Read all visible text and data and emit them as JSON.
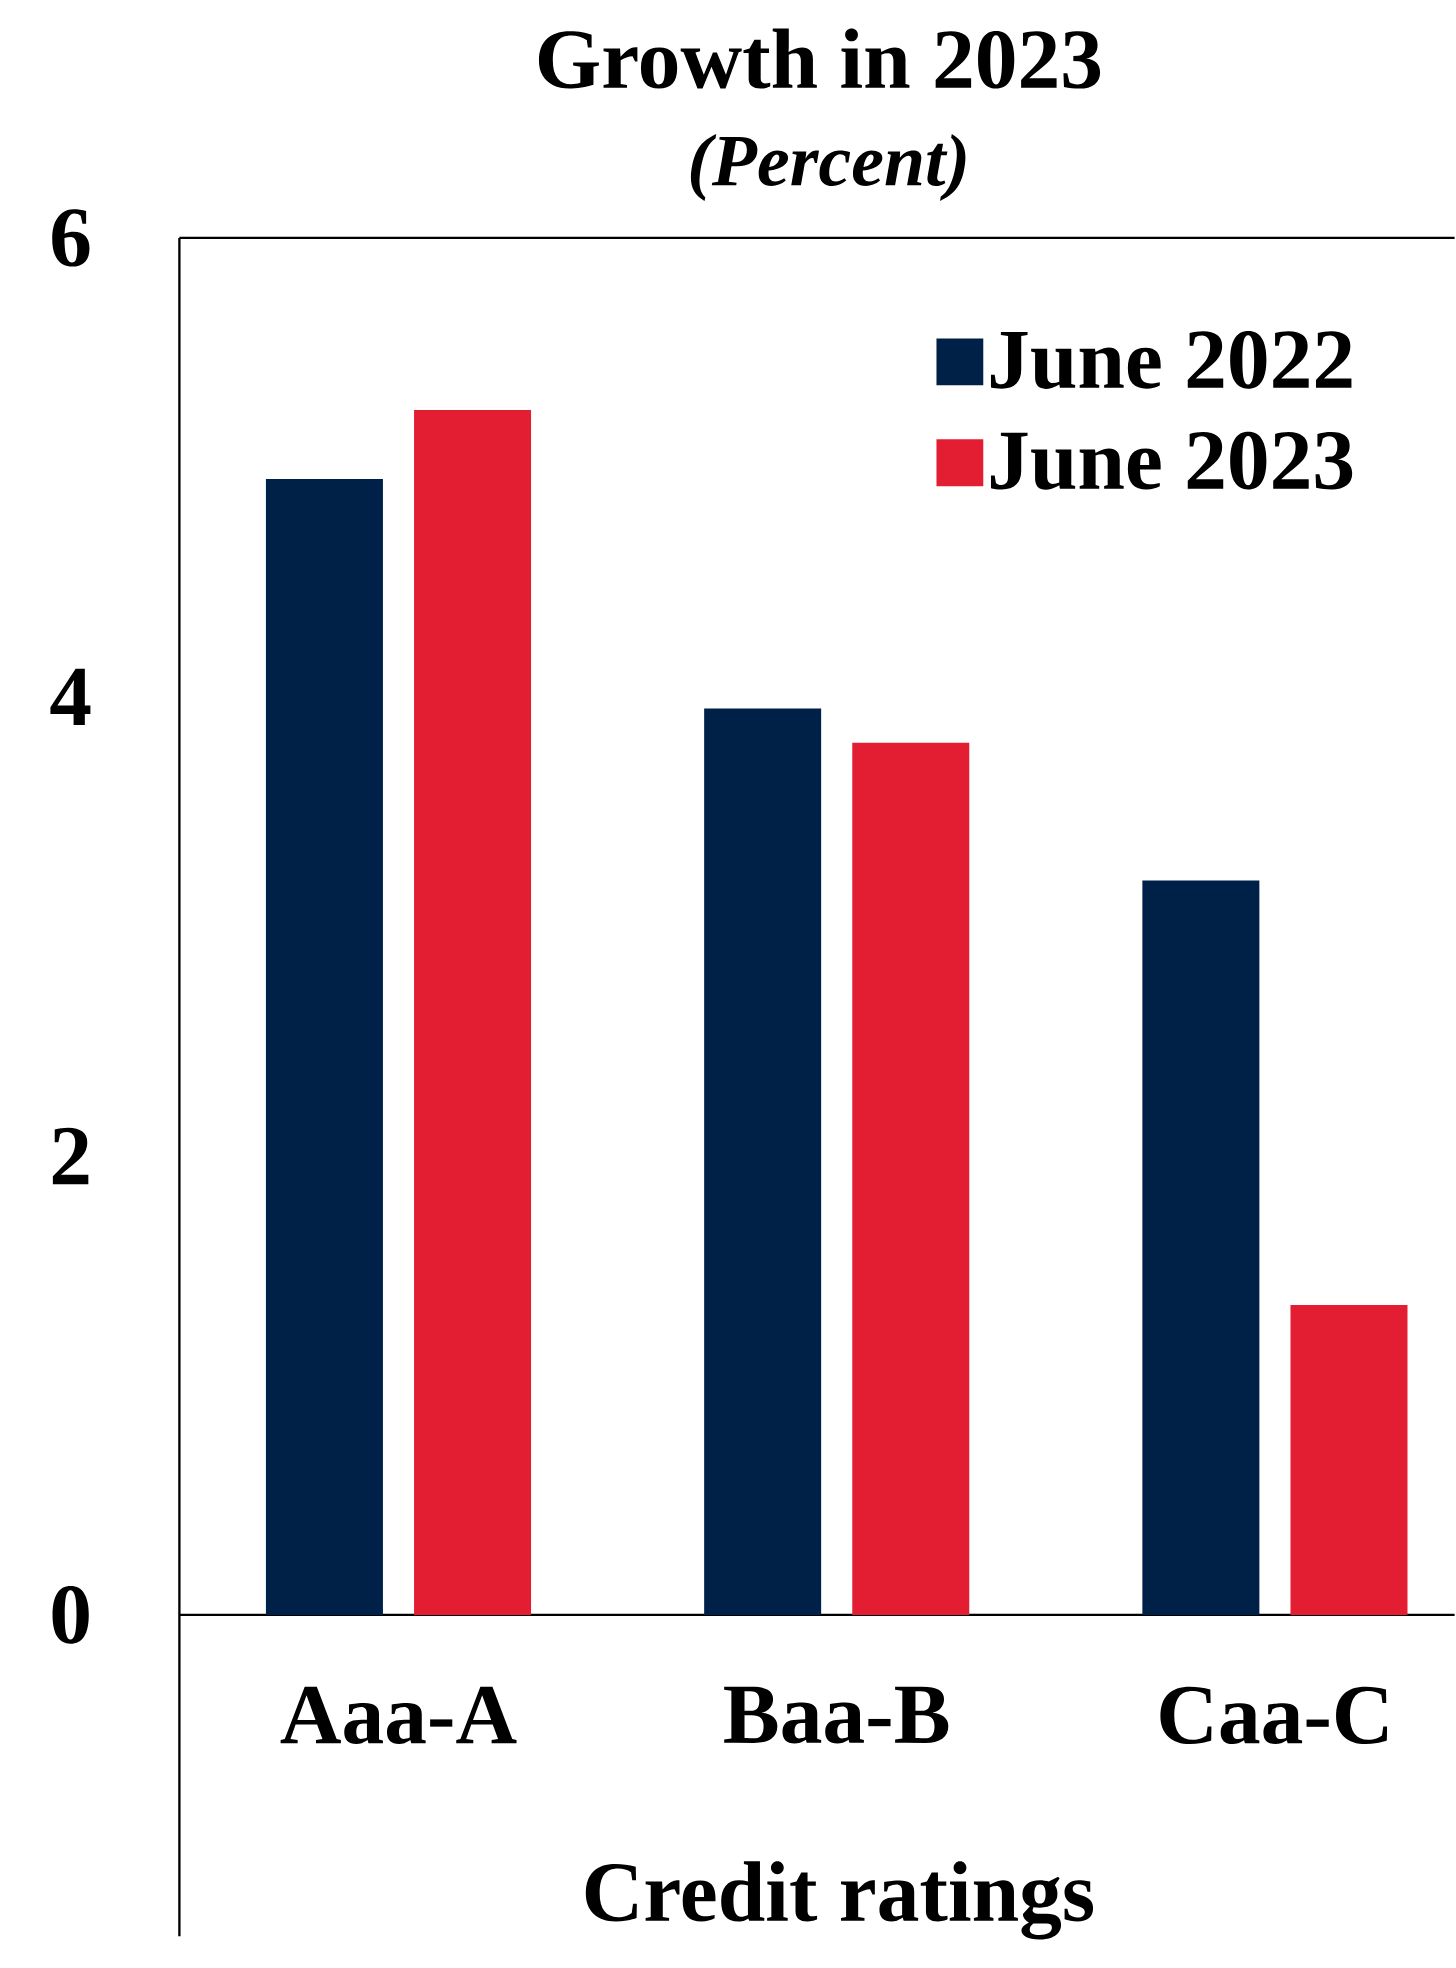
{
  "chart_data": {
    "type": "bar",
    "title": "Growth in 2023",
    "subtitle": "(Percent)",
    "xlabel": "Credit ratings",
    "categories": [
      "Aaa-A",
      "Baa-B",
      "Caa-C"
    ],
    "series": [
      {
        "name": "June 2022",
        "color": "#002147",
        "values": [
          4.95,
          3.95,
          3.2
        ]
      },
      {
        "name": "June 2023",
        "color": "#e41e32",
        "values": [
          5.25,
          3.8,
          1.35
        ]
      }
    ],
    "ylim": [
      -1.4,
      6
    ],
    "yticks": [
      0,
      2,
      4,
      6
    ],
    "grid": false,
    "legend": "top right"
  }
}
